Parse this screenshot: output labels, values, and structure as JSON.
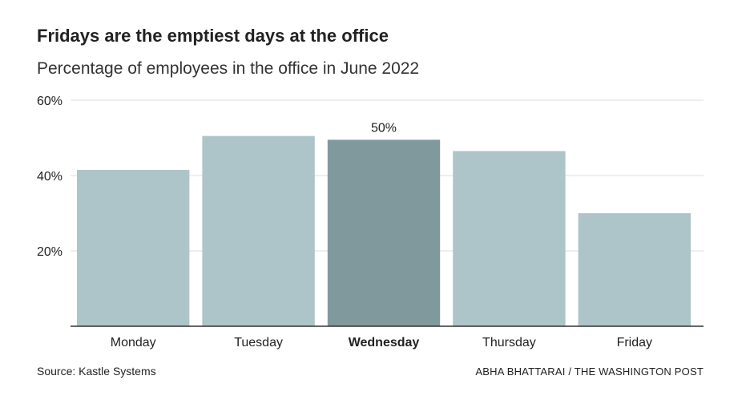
{
  "header": {
    "title": "Fridays are the emptiest days at the office",
    "subtitle": "Percentage of employees in the office in June 2022"
  },
  "footer": {
    "source": "Source: Kastle Systems",
    "credit": "ABHA BHATTARAI / THE WASHINGTON POST"
  },
  "colors": {
    "bar": "#adc5c9",
    "highlight_bar": "#7f999d",
    "gridline": "#dddddd",
    "axis": "#333333",
    "text": "#222222"
  },
  "chart_data": {
    "type": "bar",
    "title": "Fridays are the emptiest days at the office",
    "subtitle": "Percentage of employees in the office in June 2022",
    "categories": [
      "Monday",
      "Tuesday",
      "Wednesday",
      "Thursday",
      "Friday"
    ],
    "values": [
      41.5,
      50.5,
      49.5,
      46.5,
      30.0
    ],
    "highlight": "Wednesday",
    "highlight_label": "50%",
    "ylim": [
      0,
      60
    ],
    "yticks": [
      20,
      40,
      60
    ],
    "ytick_labels": [
      "20%",
      "40%",
      "60%"
    ],
    "grid": true
  }
}
